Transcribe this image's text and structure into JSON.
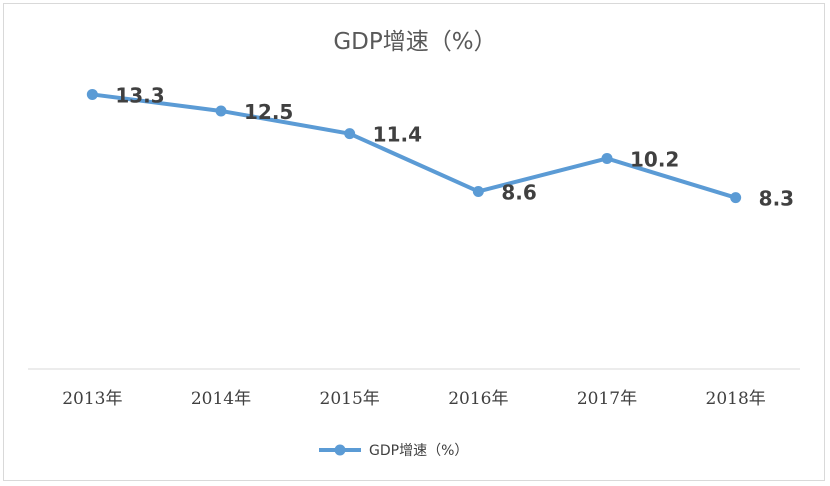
{
  "chart_data": {
    "type": "line",
    "title": "GDP增速（%）",
    "categories": [
      "2013年",
      "2014年",
      "2015年",
      "2016年",
      "2017年",
      "2018年"
    ],
    "series": [
      {
        "name": "GDP增速（%）",
        "values": [
          13.3,
          12.5,
          11.4,
          8.6,
          10.2,
          8.3
        ]
      }
    ],
    "data_labels": [
      "13.3",
      "12.5",
      "11.4",
      "8.6",
      "10.2",
      "8.3"
    ],
    "ylim": [
      0,
      14
    ],
    "grid": false,
    "legend": "bottom",
    "colors": {
      "series": "#5b9bd5",
      "axis": "#d9d9d9",
      "text": "#404040",
      "title": "#595959"
    }
  }
}
